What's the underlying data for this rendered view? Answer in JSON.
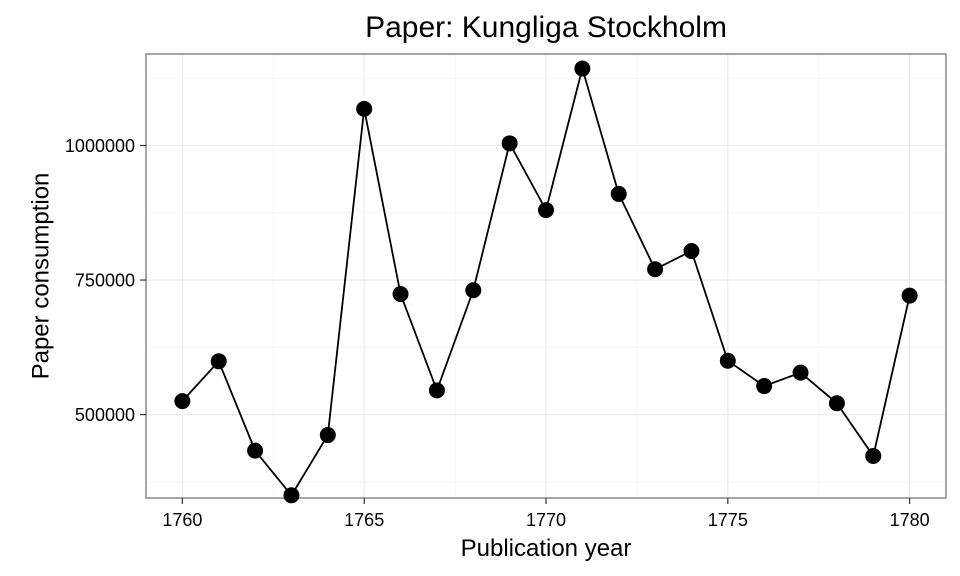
{
  "chart_data": {
    "type": "line",
    "title": "Paper: Kungliga Stockholm",
    "xlabel": "Publication year",
    "ylabel": "Paper consumption",
    "xlim": [
      1759,
      1781
    ],
    "ylim": [
      345000,
      1170000
    ],
    "xticks": [
      1760,
      1765,
      1770,
      1775,
      1780
    ],
    "xtick_labels": [
      "1760",
      "1765",
      "1770",
      "1775",
      "1780"
    ],
    "xminor": [
      1762.5,
      1767.5,
      1772.5,
      1777.5
    ],
    "yticks": [
      500000,
      750000,
      1000000
    ],
    "ytick_labels": [
      "500000",
      "750000",
      "1000000"
    ],
    "yminor": [
      375000,
      625000,
      875000,
      1125000
    ],
    "grid": true,
    "series": [
      {
        "markers": true,
        "x": [
          1760,
          1761,
          1762,
          1763,
          1764,
          1765,
          1766,
          1767,
          1768,
          1769,
          1770,
          1771,
          1772,
          1773,
          1774,
          1775,
          1776,
          1777,
          1778,
          1779,
          1780
        ],
        "y": [
          525000,
          599000,
          433000,
          350000,
          462000,
          1068000,
          724000,
          545000,
          731000,
          1004000,
          880000,
          1143000,
          910000,
          770000,
          804000,
          600000,
          553000,
          578000,
          521000,
          423000,
          721000
        ]
      }
    ]
  }
}
